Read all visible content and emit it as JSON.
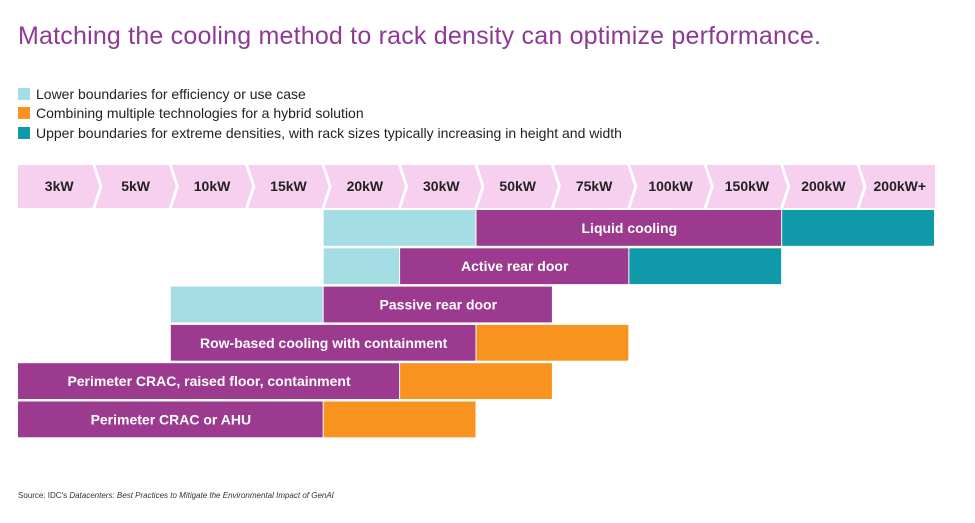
{
  "title": "Matching the cooling method to rack density can optimize performance.",
  "legend": [
    {
      "text": "Lower boundaries for efficiency or use case",
      "color": "#a5dde4"
    },
    {
      "text": "Combining multiple technologies for a hybrid solution",
      "color": "#f7931e"
    },
    {
      "text": "Upper boundaries for extreme densities, with rack sizes typically increasing in height and width",
      "color": "#0f99a9"
    }
  ],
  "levels": [
    "3kW",
    "5kW",
    "10kW",
    "15kW",
    "20kW",
    "30kW",
    "50kW",
    "75kW",
    "100kW",
    "150kW",
    "200kW",
    "200kW+"
  ],
  "rows": [
    {
      "label": "Liquid cooling"
    },
    {
      "label": "Active rear door"
    },
    {
      "label": "Passive rear door"
    },
    {
      "label": "Row-based cooling with containment"
    },
    {
      "label": "Perimeter CRAC, raised floor, containment"
    },
    {
      "label": "Perimeter CRAC or AHU"
    }
  ],
  "source": {
    "prefix": "Source: IDC's ",
    "title": "Datacenters: Best Practices to Mitigate the Environmental Impact of GenAI"
  }
}
